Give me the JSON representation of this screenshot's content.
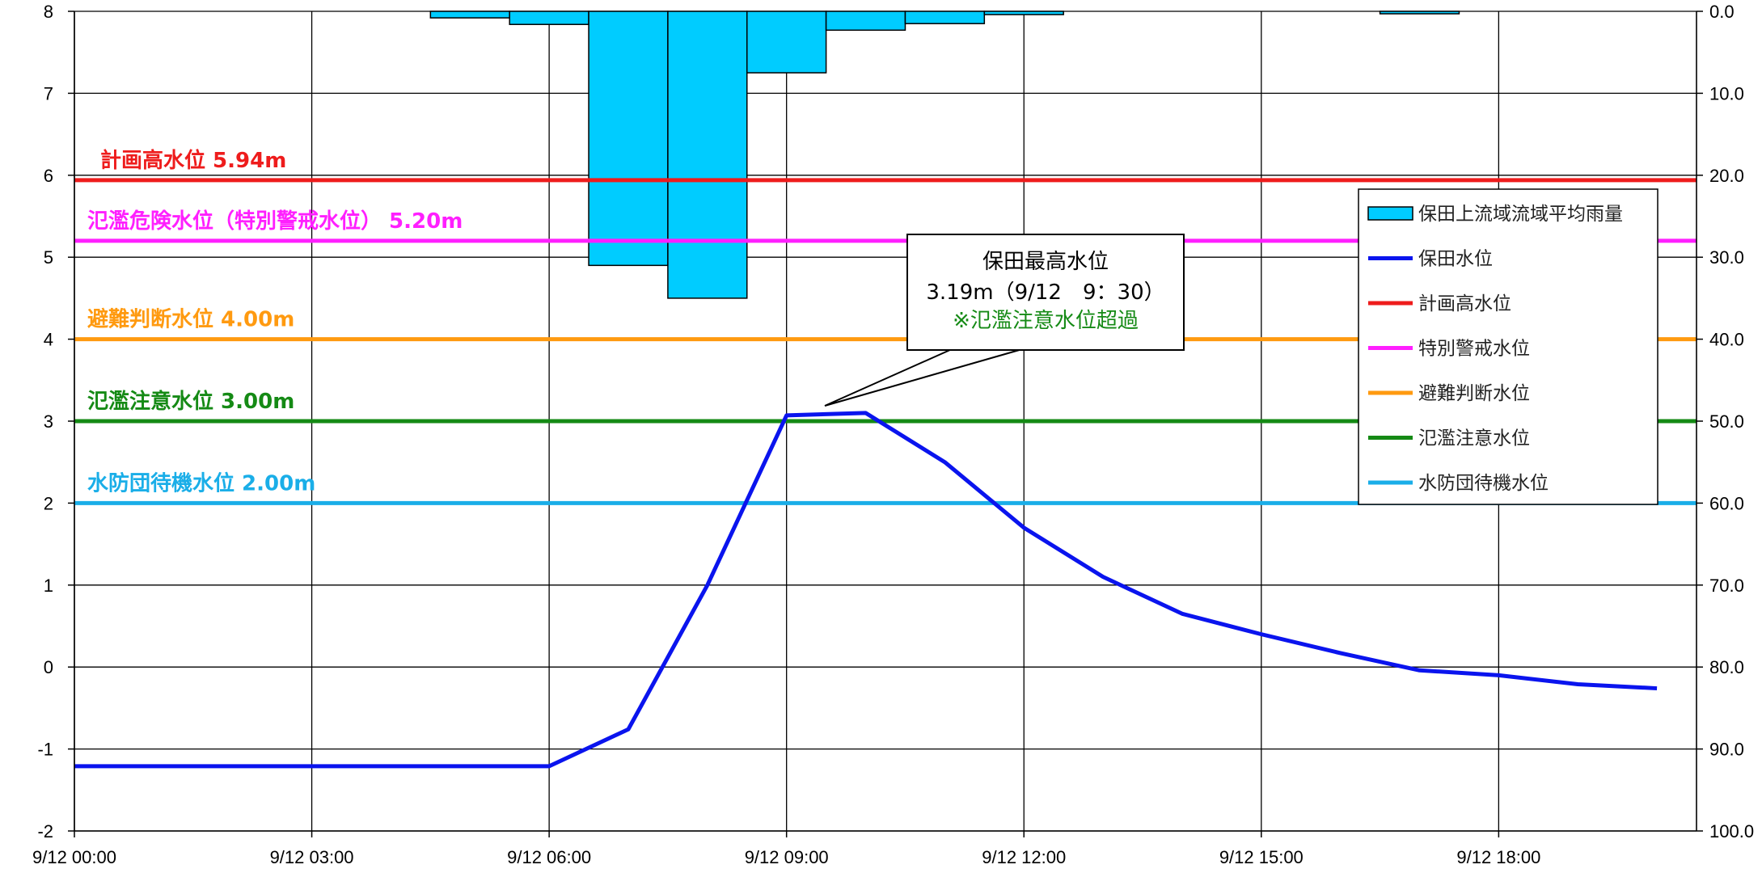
{
  "chart_data": {
    "type": "bar+line",
    "x_start": "9/12 00:00",
    "x_tick_labels": [
      "9/12 00:00",
      "9/12 03:00",
      "9/12 06:00",
      "9/12 09:00",
      "9/12 12:00",
      "9/12 15:00",
      "9/12 18:00"
    ],
    "x_range_hours": [
      0,
      20.5
    ],
    "y_left": {
      "min": -2,
      "max": 8,
      "ticks": [
        "-2",
        "-1",
        "0",
        "1",
        "2",
        "3",
        "4",
        "5",
        "6",
        "7",
        "8"
      ]
    },
    "y_right": {
      "min": 0,
      "max": 100,
      "inverted": true,
      "ticks": [
        "0.0",
        "10.0",
        "20.0",
        "30.0",
        "40.0",
        "50.0",
        "60.0",
        "70.0",
        "80.0",
        "90.0",
        "100.0"
      ]
    },
    "grid": true,
    "rain": {
      "name": "保田上流域流域平均雨量",
      "color": "#00ccff",
      "bars": [
        {
          "t_start": 4.5,
          "t_end": 5.5,
          "mm": 0.8
        },
        {
          "t_start": 5.5,
          "t_end": 6.5,
          "mm": 1.6
        },
        {
          "t_start": 6.5,
          "t_end": 7.5,
          "mm": 31.0
        },
        {
          "t_start": 7.5,
          "t_end": 8.5,
          "mm": 35.0
        },
        {
          "t_start": 8.5,
          "t_end": 9.5,
          "mm": 7.5
        },
        {
          "t_start": 9.5,
          "t_end": 10.5,
          "mm": 2.3
        },
        {
          "t_start": 10.5,
          "t_end": 11.5,
          "mm": 1.5
        },
        {
          "t_start": 11.5,
          "t_end": 12.5,
          "mm": 0.4
        },
        {
          "t_start": 16.5,
          "t_end": 17.5,
          "mm": 0.3
        }
      ]
    },
    "water_level": {
      "name": "保田水位",
      "color": "#0a14ee",
      "points": [
        [
          0,
          -1.21
        ],
        [
          6,
          -1.21
        ],
        [
          7,
          -0.76
        ],
        [
          8,
          1.0
        ],
        [
          9,
          3.07
        ],
        [
          10,
          3.1
        ],
        [
          11,
          2.5
        ],
        [
          12,
          1.7
        ],
        [
          13,
          1.1
        ],
        [
          14,
          0.65
        ],
        [
          15,
          0.4
        ],
        [
          16,
          0.17
        ],
        [
          17,
          -0.04
        ],
        [
          18,
          -0.1
        ],
        [
          19,
          -0.21
        ],
        [
          20,
          -0.26
        ]
      ]
    },
    "thresholds": [
      {
        "key": "plan",
        "legend": "計画高水位",
        "label": "計画高水位 5.94m",
        "value": 5.94,
        "color": "#ee1c1c"
      },
      {
        "key": "special",
        "legend": "特別警戒水位",
        "label": "氾濫危険水位（特別警戒水位） 5.20m",
        "value": 5.2,
        "color": "#ff1fff"
      },
      {
        "key": "evac",
        "legend": "避難判断水位",
        "label": "避難判断水位 4.00m",
        "value": 4.0,
        "color": "#ff9a10"
      },
      {
        "key": "caution",
        "legend": "氾濫注意水位",
        "label": "氾濫注意水位 3.00m",
        "value": 3.0,
        "color": "#158a15"
      },
      {
        "key": "standby",
        "legend": "水防団待機水位",
        "label": "水防団待機水位 2.00m",
        "value": 2.0,
        "color": "#1aaee8"
      }
    ],
    "callout": {
      "line1": "保田最高水位",
      "line2": "3.19m（9/12　9：30）",
      "line3": "※氾濫注意水位超過",
      "line3_color": "#158a15",
      "anchor_hour": 9.5,
      "anchor_level": 3.19
    },
    "legend_position": "right",
    "colors": {
      "grid": "#000000",
      "axis": "#000000"
    }
  }
}
